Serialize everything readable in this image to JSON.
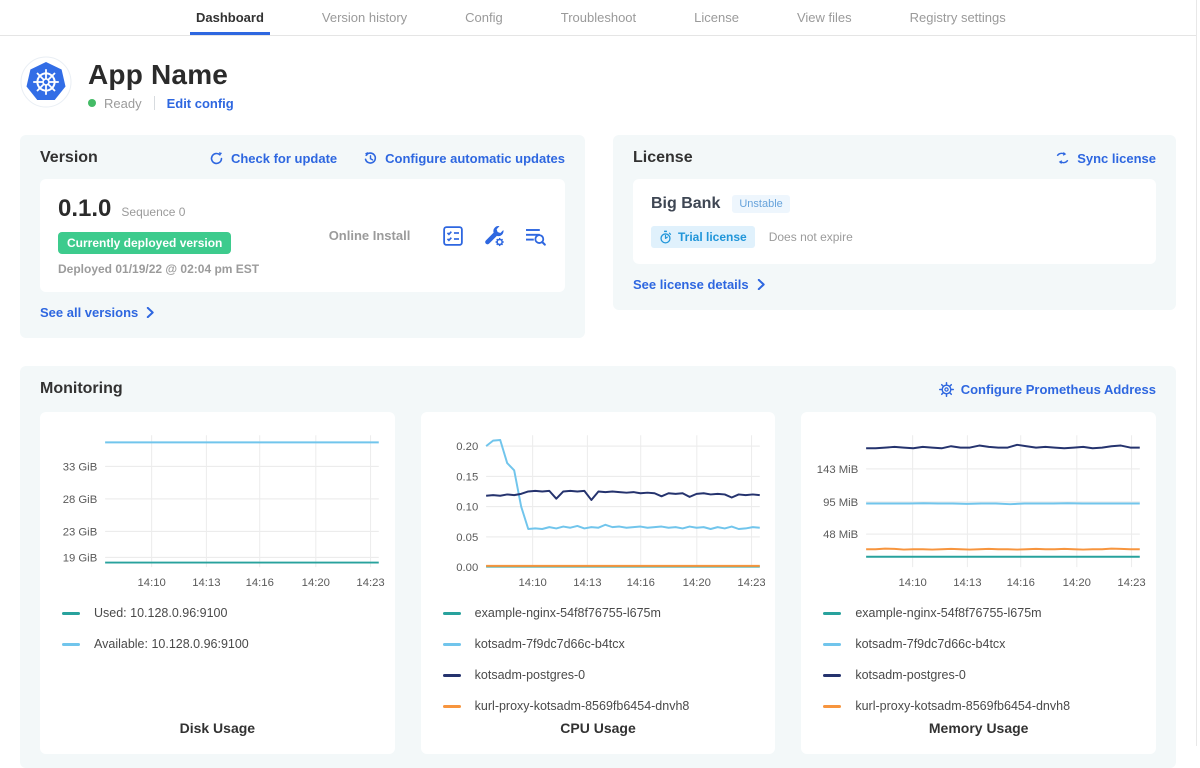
{
  "colors": {
    "accent": "#2e67e0",
    "green_dot": "#44bb66",
    "green_badge": "#3dcb8d",
    "card_bg": "#f3f8f9"
  },
  "nav": {
    "tabs": [
      {
        "label": "Dashboard",
        "active": true
      },
      {
        "label": "Version history",
        "active": false
      },
      {
        "label": "Config",
        "active": false
      },
      {
        "label": "Troubleshoot",
        "active": false
      },
      {
        "label": "License",
        "active": false
      },
      {
        "label": "View files",
        "active": false
      },
      {
        "label": "Registry settings",
        "active": false
      }
    ]
  },
  "app_header": {
    "title": "App Name",
    "status": "Ready",
    "edit_config": "Edit config"
  },
  "version_card": {
    "title": "Version",
    "check_for_update": "Check for update",
    "configure_updates": "Configure automatic updates",
    "version": "0.1.0",
    "sequence": "Sequence 0",
    "deployed_badge": "Currently deployed version",
    "deployed_at": "Deployed 01/19/22 @ 02:04 pm EST",
    "install_type": "Online Install",
    "see_all": "See all versions",
    "action_icons": [
      "preflight-checks-icon",
      "config-tools-icon",
      "deploy-logs-icon"
    ]
  },
  "license_card": {
    "title": "License",
    "sync": "Sync license",
    "customer": "Big Bank",
    "channel": "Unstable",
    "type_badge": "Trial license",
    "expiry": "Does not expire",
    "see_details": "See license details"
  },
  "monitoring": {
    "title": "Monitoring",
    "configure_prometheus": "Configure Prometheus Address"
  },
  "chart_data": [
    {
      "type": "line",
      "title": "Disk Usage",
      "ylim": [
        17.5,
        37.8
      ],
      "y_ticks": [
        {
          "label": "33 GiB",
          "value": 33
        },
        {
          "label": "28 GiB",
          "value": 28
        },
        {
          "label": "23 GiB",
          "value": 23
        },
        {
          "label": "19 GiB",
          "value": 19
        }
      ],
      "x_ticks": [
        "14:10",
        "14:13",
        "14:16",
        "14:20",
        "14:23"
      ],
      "x_tick_pos": [
        0.17,
        0.37,
        0.565,
        0.77,
        0.97
      ],
      "series": [
        {
          "name": "Used: 10.128.0.96:9100",
          "color": "#28a29d",
          "values": [
            18.2,
            18.2,
            18.2,
            18.2,
            18.2,
            18.2,
            18.2,
            18.2,
            18.2,
            18.2
          ]
        },
        {
          "name": "Available: 10.128.0.96:9100",
          "color": "#71c5ec",
          "values": [
            36.7,
            36.7,
            36.7,
            36.7,
            36.7,
            36.7,
            36.7,
            36.7,
            36.7,
            36.7
          ]
        }
      ]
    },
    {
      "type": "line",
      "title": "CPU Usage",
      "ylim": [
        0,
        0.218
      ],
      "y_ticks": [
        {
          "label": "0.20",
          "value": 0.2
        },
        {
          "label": "0.15",
          "value": 0.15
        },
        {
          "label": "0.10",
          "value": 0.1
        },
        {
          "label": "0.05",
          "value": 0.05
        },
        {
          "label": "0.00",
          "value": 0.0
        }
      ],
      "x_ticks": [
        "14:10",
        "14:13",
        "14:16",
        "14:20",
        "14:23"
      ],
      "x_tick_pos": [
        0.17,
        0.37,
        0.565,
        0.77,
        0.97
      ],
      "series": [
        {
          "name": "example-nginx-54f8f76755-l675m",
          "color": "#28a29d",
          "values": [
            0.001,
            0.001,
            0.001,
            0.001,
            0.001,
            0.001,
            0.001,
            0.001
          ]
        },
        {
          "name": "kotsadm-7f9dc7d66c-b4tcx",
          "color": "#71c5ec",
          "values": [
            0.2,
            0.209,
            0.21,
            0.172,
            0.16,
            0.1,
            0.063,
            0.064,
            0.063,
            0.066,
            0.064,
            0.067,
            0.065,
            0.068,
            0.064,
            0.066,
            0.065,
            0.07,
            0.066,
            0.067,
            0.065,
            0.066,
            0.067,
            0.065,
            0.066,
            0.067,
            0.065,
            0.066,
            0.064,
            0.067,
            0.065,
            0.066,
            0.063,
            0.066,
            0.064,
            0.067,
            0.063,
            0.064,
            0.066,
            0.065
          ]
        },
        {
          "name": "kotsadm-postgres-0",
          "color": "#25336e",
          "values": [
            0.118,
            0.119,
            0.118,
            0.12,
            0.119,
            0.121,
            0.125,
            0.126,
            0.125,
            0.126,
            0.113,
            0.125,
            0.126,
            0.125,
            0.126,
            0.111,
            0.125,
            0.124,
            0.125,
            0.124,
            0.123,
            0.124,
            0.122,
            0.123,
            0.122,
            0.117,
            0.122,
            0.121,
            0.122,
            0.116,
            0.121,
            0.122,
            0.12,
            0.121,
            0.12,
            0.115,
            0.12,
            0.119,
            0.12,
            0.119
          ]
        },
        {
          "name": "kurl-proxy-kotsadm-8569fb6454-dnvh8",
          "color": "#f7953e",
          "values": [
            0.002,
            0.002,
            0.002,
            0.002,
            0.002,
            0.002,
            0.002,
            0.002
          ]
        }
      ]
    },
    {
      "type": "line",
      "title": "Memory Usage",
      "ylim": [
        0,
        192
      ],
      "y_ticks": [
        {
          "label": "143 MiB",
          "value": 143
        },
        {
          "label": "95 MiB",
          "value": 95
        },
        {
          "label": "48 MiB",
          "value": 48
        }
      ],
      "x_ticks": [
        "14:10",
        "14:13",
        "14:16",
        "14:20",
        "14:23"
      ],
      "x_tick_pos": [
        0.17,
        0.37,
        0.565,
        0.77,
        0.97
      ],
      "series": [
        {
          "name": "example-nginx-54f8f76755-l675m",
          "color": "#28a29d",
          "values": [
            15,
            15,
            15,
            15,
            15,
            15,
            15,
            15
          ]
        },
        {
          "name": "kotsadm-7f9dc7d66c-b4tcx",
          "color": "#71c5ec",
          "values": [
            92.5,
            92.5,
            92.5,
            92.5,
            93,
            92.5,
            92.5,
            92,
            92.5,
            92.5,
            91.5,
            92.5,
            92.5,
            92.5,
            93,
            92.5,
            92.5,
            92.5,
            92.5,
            92.5
          ]
        },
        {
          "name": "kotsadm-postgres-0",
          "color": "#25336e",
          "values": [
            173,
            173,
            174,
            175,
            174,
            173,
            175,
            174,
            173,
            176,
            174,
            174,
            177,
            175,
            174,
            174,
            178,
            176,
            174,
            175,
            174,
            173,
            174,
            175,
            173,
            174,
            176,
            177,
            174,
            174
          ]
        },
        {
          "name": "kurl-proxy-kotsadm-8569fb6454-dnvh8",
          "color": "#f7953e",
          "values": [
            26,
            26,
            27,
            26.5,
            25.5,
            26,
            26,
            25.5,
            26,
            26.5,
            26,
            25.5,
            26,
            26.5,
            26,
            26,
            25.5,
            26,
            26.5,
            26,
            26,
            26.5,
            26,
            25.5,
            26,
            26,
            27,
            26.5,
            26,
            26
          ]
        }
      ]
    }
  ]
}
